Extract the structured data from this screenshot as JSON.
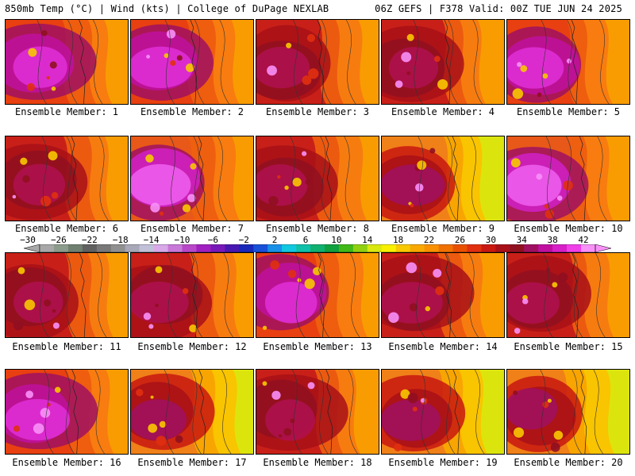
{
  "header": {
    "left": "850mb Temp (°C) | Wind (kts) | College of DuPage NEXLAB",
    "right": "06Z GEFS | F378 Valid: 00Z TUE JUN 24 2025"
  },
  "panels": [
    {
      "caption": "Ensemble Member: 1"
    },
    {
      "caption": "Ensemble Member: 2"
    },
    {
      "caption": "Ensemble Member: 3"
    },
    {
      "caption": "Ensemble Member: 4"
    },
    {
      "caption": "Ensemble Member: 5"
    },
    {
      "caption": "Ensemble Member: 6"
    },
    {
      "caption": "Ensemble Member: 7"
    },
    {
      "caption": "Ensemble Member: 8"
    },
    {
      "caption": "Ensemble Member: 9"
    },
    {
      "caption": "Ensemble Member: 10"
    },
    {
      "caption": "Ensemble Member: 11"
    },
    {
      "caption": "Ensemble Member: 12"
    },
    {
      "caption": "Ensemble Member: 13"
    },
    {
      "caption": "Ensemble Member: 14"
    },
    {
      "caption": "Ensemble Member: 15"
    },
    {
      "caption": "Ensemble Member: 16"
    },
    {
      "caption": "Ensemble Member: 17"
    },
    {
      "caption": "Ensemble Member: 18"
    },
    {
      "caption": "Ensemble Member: 19"
    },
    {
      "caption": "Ensemble Member: 20"
    }
  ],
  "colorbar": {
    "ticks": [
      "−30",
      "−26",
      "−22",
      "−18",
      "−14",
      "−10",
      "−6",
      "−2",
      "2",
      "6",
      "10",
      "14",
      "18",
      "22",
      "26",
      "30",
      "34",
      "38",
      "42"
    ],
    "colors": [
      "#a8a8a8",
      "#8c9c8c",
      "#708070",
      "#606060",
      "#787878",
      "#909090",
      "#a8a8b8",
      "#c0c0d8",
      "#d8a8e8",
      "#c878d8",
      "#b848c8",
      "#a020c0",
      "#7818b8",
      "#4818b0",
      "#1828b8",
      "#1850d8",
      "#1890e8",
      "#10c8e0",
      "#10c0a8",
      "#10b070",
      "#10a040",
      "#40b818",
      "#90d010",
      "#d8e810",
      "#f8f000",
      "#f8c800",
      "#f8a800",
      "#f89000",
      "#f07000",
      "#e85000",
      "#e03010",
      "#c81810",
      "#a81018",
      "#901020",
      "#a01060",
      "#c010a0",
      "#d820c8",
      "#f040e8",
      "#f890f8"
    ]
  }
}
